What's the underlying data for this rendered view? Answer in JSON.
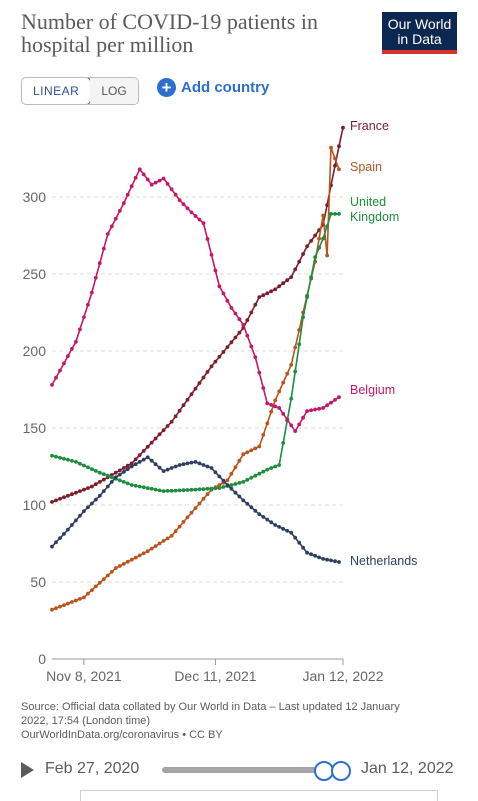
{
  "header": {
    "title": "Number of COVID-19 patients in hospital per million",
    "logo_line1": "Our World",
    "logo_line2": "in Data"
  },
  "controls": {
    "scale_options": [
      "LINEAR",
      "LOG"
    ],
    "scale_selected": "LINEAR",
    "add_country_label": "Add country"
  },
  "colors": {
    "France": "#7a1f2b",
    "Spain": "#b9541f",
    "United Kingdom": "#1e8e3e",
    "Belgium": "#c3186a",
    "Netherlands": "#2f3f5f"
  },
  "chart_data": {
    "type": "line",
    "title": "Number of COVID-19 patients in hospital per million",
    "ylim": [
      0,
      350
    ],
    "yticks": [
      0,
      50,
      100,
      150,
      200,
      250,
      300
    ],
    "xticks": [
      {
        "day": 8,
        "label": "Nov 8, 2021"
      },
      {
        "day": 41,
        "label": "Dec 11, 2021"
      },
      {
        "day": 73,
        "label": "Jan 12, 2022"
      }
    ],
    "x_start": "2021-10-31",
    "x_end": "2022-01-12",
    "grid": "horizontal",
    "legend": "labels at line ends",
    "series": [
      {
        "name": "France",
        "label_lines": [
          "France"
        ],
        "points": [
          [
            0,
            102
          ],
          [
            10,
            112
          ],
          [
            20,
            127
          ],
          [
            30,
            154
          ],
          [
            40,
            190
          ],
          [
            48,
            215
          ],
          [
            52,
            235
          ],
          [
            56,
            240
          ],
          [
            60,
            248
          ],
          [
            64,
            268
          ],
          [
            68,
            282
          ],
          [
            72,
            333
          ],
          [
            73,
            345
          ]
        ]
      },
      {
        "name": "Spain",
        "label_lines": [
          "Spain"
        ],
        "points": [
          [
            0,
            32
          ],
          [
            8,
            40
          ],
          [
            16,
            59
          ],
          [
            24,
            70
          ],
          [
            30,
            80
          ],
          [
            35,
            95
          ],
          [
            40,
            110
          ],
          [
            44,
            116
          ],
          [
            48,
            133
          ],
          [
            52,
            138
          ],
          [
            56,
            168
          ],
          [
            60,
            191
          ],
          [
            63,
            225
          ],
          [
            66,
            258
          ],
          [
            68,
            288
          ],
          [
            69,
            262
          ],
          [
            70,
            332
          ],
          [
            72,
            318
          ]
        ]
      },
      {
        "name": "United Kingdom",
        "label_lines": [
          "United",
          "Kingdom"
        ],
        "points": [
          [
            0,
            132
          ],
          [
            6,
            128
          ],
          [
            12,
            121
          ],
          [
            20,
            113
          ],
          [
            28,
            109
          ],
          [
            36,
            110
          ],
          [
            42,
            111
          ],
          [
            48,
            115
          ],
          [
            54,
            123
          ],
          [
            57,
            126
          ],
          [
            60,
            169
          ],
          [
            63,
            222
          ],
          [
            66,
            261
          ],
          [
            68,
            273
          ],
          [
            70,
            289
          ],
          [
            72,
            289
          ]
        ]
      },
      {
        "name": "Belgium",
        "label_lines": [
          "Belgium"
        ],
        "points": [
          [
            0,
            178
          ],
          [
            6,
            206
          ],
          [
            10,
            238
          ],
          [
            14,
            276
          ],
          [
            18,
            296
          ],
          [
            22,
            318
          ],
          [
            25,
            308
          ],
          [
            28,
            312
          ],
          [
            32,
            298
          ],
          [
            35,
            290
          ],
          [
            38,
            283
          ],
          [
            42,
            242
          ],
          [
            45,
            228
          ],
          [
            48,
            217
          ],
          [
            51,
            196
          ],
          [
            54,
            166
          ],
          [
            57,
            163
          ],
          [
            61,
            148
          ],
          [
            64,
            161
          ],
          [
            68,
            163
          ],
          [
            72,
            170
          ]
        ]
      },
      {
        "name": "Netherlands",
        "label_lines": [
          "Netherlands"
        ],
        "points": [
          [
            0,
            73
          ],
          [
            4,
            84
          ],
          [
            8,
            96
          ],
          [
            12,
            106
          ],
          [
            16,
            118
          ],
          [
            20,
            125
          ],
          [
            24,
            131
          ],
          [
            28,
            122
          ],
          [
            32,
            126
          ],
          [
            36,
            128
          ],
          [
            40,
            124
          ],
          [
            44,
            113
          ],
          [
            48,
            103
          ],
          [
            52,
            94
          ],
          [
            56,
            87
          ],
          [
            60,
            82
          ],
          [
            64,
            69
          ],
          [
            68,
            65
          ],
          [
            72,
            63
          ]
        ]
      }
    ]
  },
  "footer": {
    "source_line1": "Source: Official data collated by Our World in Data – Last updated 12 January",
    "source_line2": "2022, 17:54 (London time)",
    "source_line3": "OurWorldInData.org/coronavirus • CC BY"
  },
  "timeline": {
    "start_label": "Feb 27, 2020",
    "end_label": "Jan 12, 2022"
  }
}
